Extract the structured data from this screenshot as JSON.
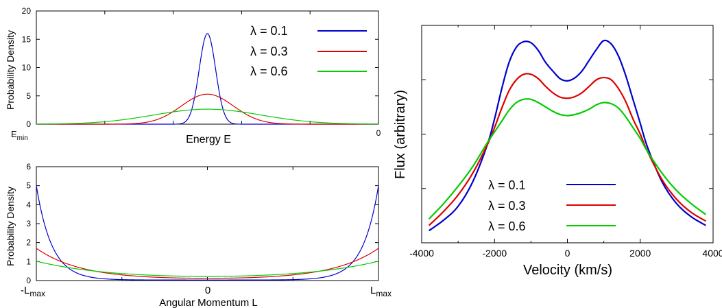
{
  "chart_data": [
    {
      "type": "line",
      "ylabel": "Probability Density",
      "xlabel": "Energy E",
      "ylim": [
        0,
        20
      ],
      "yticks": [
        "0",
        "5",
        "10",
        "15",
        "20"
      ],
      "xtick_labels": {
        "left_main": "E",
        "left_sub": "min",
        "right": "0"
      },
      "legend": "top-right",
      "series": [
        {
          "name": "λ = 0.1",
          "color": "#0000cc",
          "center": 0.5,
          "sigma": 0.024,
          "peak": 16.0
        },
        {
          "name": "λ = 0.3",
          "color": "#dd0000",
          "center": 0.5,
          "sigma": 0.076,
          "peak": 5.3
        },
        {
          "name": "λ = 0.6",
          "color": "#00cc00",
          "center": 0.5,
          "sigma": 0.158,
          "peak": 2.65
        }
      ]
    },
    {
      "type": "line",
      "ylabel": "Probability Density",
      "xlabel": "Angular Momentum L",
      "ylim": [
        0,
        6
      ],
      "yticks": [
        "0",
        "1",
        "2",
        "3",
        "4",
        "5",
        "6"
      ],
      "xtick_labels": {
        "left_main": "-L",
        "left_sub": "max",
        "center": "0",
        "right_main": "L",
        "right_sub": "max"
      },
      "series": [
        {
          "name": "λ = 0.1",
          "color": "#0000cc",
          "base": 0.03,
          "edge": 5.0,
          "k": 11.0
        },
        {
          "name": "λ = 0.3",
          "color": "#dd0000",
          "base": 0.12,
          "edge": 1.7,
          "k": 3.8
        },
        {
          "name": "λ = 0.6",
          "color": "#00cc00",
          "base": 0.22,
          "edge": 1.02,
          "k": 2.2
        }
      ]
    },
    {
      "type": "line",
      "xlabel": "Velocity (km/s)",
      "ylabel": "Flux (arbitrary)",
      "xlim": [
        -4000,
        4000
      ],
      "xticks": [
        -4000,
        -2000,
        0,
        2000,
        4000
      ],
      "ylim": [
        0,
        1
      ],
      "legend": "bottom-center",
      "series": [
        {
          "name": "λ = 0.1",
          "color": "#0000cc",
          "x": [
            -3800,
            -3400,
            -3000,
            -2600,
            -2200,
            -2000,
            -1800,
            -1600,
            -1400,
            -1200,
            -1000,
            -800,
            -600,
            -400,
            -200,
            0,
            200,
            400,
            600,
            800,
            1000,
            1200,
            1400,
            1600,
            1800,
            2000,
            2200,
            2600,
            3000,
            3400,
            3800
          ],
          "y": [
            0.056,
            0.104,
            0.168,
            0.28,
            0.45,
            0.57,
            0.71,
            0.83,
            0.9,
            0.925,
            0.92,
            0.885,
            0.83,
            0.79,
            0.755,
            0.745,
            0.758,
            0.79,
            0.84,
            0.89,
            0.93,
            0.915,
            0.86,
            0.77,
            0.66,
            0.55,
            0.44,
            0.28,
            0.18,
            0.12,
            0.08
          ]
        },
        {
          "name": "λ = 0.3",
          "color": "#dd0000",
          "x": [
            -3800,
            -3400,
            -3000,
            -2600,
            -2200,
            -2000,
            -1800,
            -1600,
            -1400,
            -1200,
            -1000,
            -800,
            -600,
            -400,
            -200,
            0,
            200,
            400,
            600,
            800,
            1000,
            1200,
            1400,
            1600,
            1800,
            2000,
            2200,
            2600,
            3000,
            3400,
            3800
          ],
          "y": [
            0.08,
            0.144,
            0.22,
            0.32,
            0.45,
            0.53,
            0.62,
            0.7,
            0.75,
            0.775,
            0.775,
            0.755,
            0.72,
            0.69,
            0.67,
            0.665,
            0.672,
            0.69,
            0.72,
            0.75,
            0.76,
            0.75,
            0.71,
            0.65,
            0.57,
            0.5,
            0.42,
            0.29,
            0.2,
            0.14,
            0.1
          ]
        },
        {
          "name": "λ = 0.6",
          "color": "#00cc00",
          "x": [
            -3800,
            -3400,
            -3000,
            -2600,
            -2200,
            -2000,
            -1800,
            -1600,
            -1400,
            -1200,
            -1000,
            -800,
            -600,
            -400,
            -200,
            0,
            200,
            400,
            600,
            800,
            1000,
            1200,
            1400,
            1600,
            1800,
            2000,
            2200,
            2600,
            3000,
            3400,
            3800
          ],
          "y": [
            0.11,
            0.18,
            0.26,
            0.35,
            0.46,
            0.51,
            0.56,
            0.61,
            0.645,
            0.66,
            0.66,
            0.645,
            0.625,
            0.605,
            0.59,
            0.585,
            0.59,
            0.6,
            0.615,
            0.635,
            0.645,
            0.64,
            0.62,
            0.58,
            0.53,
            0.48,
            0.42,
            0.32,
            0.24,
            0.18,
            0.13
          ]
        }
      ]
    }
  ]
}
